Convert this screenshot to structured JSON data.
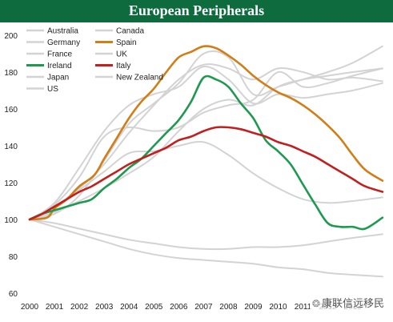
{
  "chart_data": {
    "type": "line",
    "title": "European Peripherals",
    "xlabel": "",
    "ylabel": "",
    "x": [
      2000,
      2001,
      2002,
      2003,
      2004,
      2005,
      2006,
      2007,
      2008,
      2009,
      2010,
      2011,
      2012,
      2013
    ],
    "xlim": [
      2000,
      2014.3
    ],
    "ylim": [
      60,
      200
    ],
    "yticks": [
      60,
      80,
      100,
      120,
      140,
      160,
      180,
      200
    ],
    "xticks": [
      "2000",
      "2001",
      "2002",
      "2003",
      "2004",
      "2005",
      "2006",
      "2007",
      "2008",
      "2009",
      "2010",
      "2011",
      "2012",
      "2013"
    ],
    "grid": false,
    "legend_position": "top-left",
    "series": [
      {
        "name": "Australia",
        "color": "#d3d3d3",
        "x": [
          2000,
          2001,
          2002,
          2003,
          2004,
          2005,
          2006,
          2007,
          2008,
          2009,
          2010,
          2011,
          2012,
          2013,
          2014.2
        ],
        "values": [
          100,
          108,
          123,
          145,
          150,
          148,
          150,
          158,
          162,
          165,
          180,
          172,
          174,
          178,
          182
        ]
      },
      {
        "name": "Canada",
        "color": "#d3d3d3",
        "x": [
          2000,
          2001,
          2002,
          2003,
          2004,
          2005,
          2006,
          2007,
          2008,
          2009,
          2010,
          2011,
          2012,
          2013,
          2014.2
        ],
        "values": [
          100,
          104,
          110,
          117,
          125,
          134,
          148,
          160,
          165,
          162,
          172,
          176,
          178,
          180,
          182
        ]
      },
      {
        "name": "Germany",
        "color": "#d3d3d3",
        "x": [
          2000,
          2001,
          2002,
          2003,
          2004,
          2005,
          2006,
          2007,
          2008,
          2009,
          2010,
          2011,
          2012,
          2013,
          2014.2
        ],
        "values": [
          100,
          98,
          95,
          92,
          89,
          87,
          85,
          84,
          84,
          85,
          85,
          86,
          88,
          90,
          92
        ]
      },
      {
        "name": "Spain",
        "color": "#d27d16",
        "x": [
          2000,
          2000.7,
          2001,
          2001.5,
          2002,
          2002.6,
          2003,
          2003.5,
          2004,
          2004.5,
          2005,
          2005.5,
          2006,
          2006.5,
          2007,
          2007.5,
          2008,
          2008.5,
          2009,
          2009.5,
          2010,
          2010.5,
          2011,
          2011.5,
          2012,
          2012.5,
          2013,
          2013.5,
          2014.2
        ],
        "values": [
          100,
          101,
          106,
          111,
          118,
          124,
          133,
          144,
          155,
          164,
          171,
          180,
          188,
          191,
          194,
          193,
          189,
          184,
          178,
          173,
          169,
          166,
          162,
          157,
          151,
          144,
          135,
          127,
          121
        ]
      },
      {
        "name": "France",
        "color": "#d3d3d3",
        "x": [
          2000,
          2001,
          2002,
          2003,
          2004,
          2005,
          2006,
          2007,
          2008,
          2009,
          2010,
          2011,
          2012,
          2013,
          2014.2
        ],
        "values": [
          100,
          107,
          117,
          130,
          147,
          162,
          176,
          184,
          182,
          176,
          182,
          180,
          176,
          177,
          175
        ]
      },
      {
        "name": "UK",
        "color": "#d3d3d3",
        "x": [
          2000,
          2001,
          2002,
          2003,
          2004,
          2005,
          2006,
          2007,
          2008,
          2009,
          2010,
          2011,
          2012,
          2013,
          2014.2
        ],
        "values": [
          100,
          109,
          128,
          148,
          162,
          168,
          172,
          183,
          176,
          163,
          168,
          166,
          168,
          170,
          174
        ]
      },
      {
        "name": "Ireland",
        "color": "#1d9a4f",
        "x": [
          2000,
          2000.5,
          2001,
          2001.5,
          2002,
          2002.5,
          2003,
          2003.5,
          2004,
          2004.5,
          2005,
          2005.5,
          2006,
          2006.5,
          2007,
          2007.5,
          2008,
          2008.5,
          2009,
          2009.5,
          2010,
          2010.5,
          2011,
          2011.5,
          2012,
          2012.5,
          2013,
          2013.5,
          2014.2
        ],
        "values": [
          100,
          103,
          105,
          107,
          109,
          111,
          117,
          122,
          128,
          133,
          140,
          147,
          154,
          164,
          177,
          176,
          172,
          163,
          155,
          143,
          137,
          130,
          119,
          108,
          98,
          96,
          96,
          95,
          101
        ]
      },
      {
        "name": "Italy",
        "color": "#c21f1f",
        "x": [
          2000,
          2000.5,
          2001,
          2001.5,
          2002,
          2002.5,
          2003,
          2003.5,
          2004,
          2004.5,
          2005,
          2005.5,
          2006,
          2006.5,
          2007,
          2007.5,
          2008,
          2008.5,
          2009,
          2009.5,
          2010,
          2010.5,
          2011,
          2011.5,
          2012,
          2012.5,
          2013,
          2013.5,
          2014.2
        ],
        "values": [
          100,
          103,
          107,
          111,
          115,
          118,
          122,
          126,
          130,
          133,
          136,
          139,
          143,
          145,
          148,
          150,
          150,
          149,
          147,
          145,
          142,
          140,
          137,
          134,
          130,
          126,
          122,
          118,
          115
        ]
      },
      {
        "name": "Japan",
        "color": "#d3d3d3",
        "x": [
          2000,
          2001,
          2002,
          2003,
          2004,
          2005,
          2006,
          2007,
          2008,
          2009,
          2010,
          2011,
          2012,
          2013,
          2014.2
        ],
        "values": [
          100,
          96,
          92,
          88,
          84,
          81,
          79,
          78,
          77,
          76,
          74,
          73,
          71,
          70,
          69
        ]
      },
      {
        "name": "New Zealand",
        "color": "#d3d3d3",
        "x": [
          2000,
          2001,
          2002,
          2003,
          2004,
          2005,
          2006,
          2007,
          2008,
          2009,
          2010,
          2011,
          2012,
          2013,
          2014.2
        ],
        "values": [
          100,
          103,
          113,
          132,
          152,
          163,
          174,
          190,
          188,
          168,
          172,
          176,
          180,
          185,
          194
        ]
      },
      {
        "name": "US",
        "color": "#d3d3d3",
        "x": [
          2000,
          2001,
          2002,
          2003,
          2004,
          2005,
          2006,
          2007,
          2008,
          2009,
          2010,
          2011,
          2012,
          2013,
          2014.2
        ],
        "values": [
          100,
          107,
          116,
          126,
          136,
          137,
          140,
          142,
          135,
          125,
          117,
          111,
          109,
          110,
          112
        ]
      }
    ]
  },
  "page": {
    "title": "European Peripherals",
    "watermark_text": "康联信远移民",
    "watermark_icon": "wechat-icon"
  }
}
